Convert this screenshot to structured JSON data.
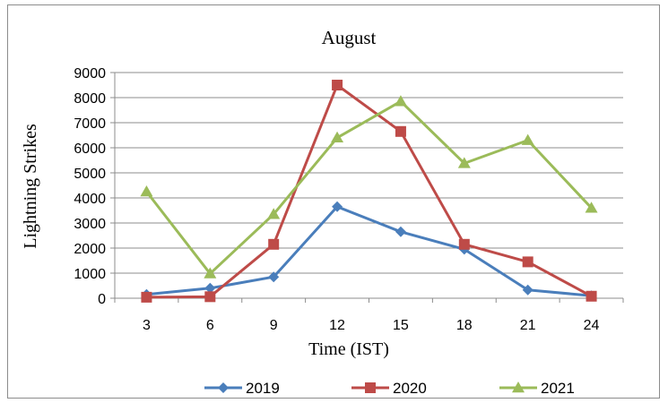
{
  "chart_data": {
    "type": "line",
    "title": "August",
    "xlabel": "Time (IST)",
    "ylabel": "Lightning Strikes",
    "categories": [
      "3",
      "6",
      "9",
      "12",
      "15",
      "18",
      "21",
      "24"
    ],
    "ylim": [
      0,
      9000
    ],
    "yticks": [
      0,
      1000,
      2000,
      3000,
      4000,
      5000,
      6000,
      7000,
      8000,
      9000
    ],
    "grid": true,
    "legend_position": "bottom",
    "series": [
      {
        "name": "2019",
        "color": "#4a7ebb",
        "marker": "diamond",
        "values": [
          150,
          400,
          850,
          3650,
          2650,
          1950,
          330,
          100
        ]
      },
      {
        "name": "2020",
        "color": "#be4b48",
        "marker": "square",
        "values": [
          40,
          60,
          2150,
          8500,
          6650,
          2150,
          1450,
          80
        ]
      },
      {
        "name": "2021",
        "color": "#9bbb59",
        "marker": "triangle",
        "values": [
          4250,
          980,
          3350,
          6400,
          7850,
          5380,
          6300,
          3600
        ]
      }
    ]
  }
}
